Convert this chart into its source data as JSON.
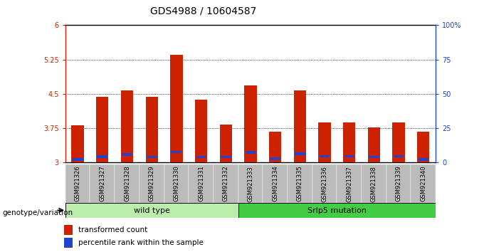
{
  "title": "GDS4988 / 10604587",
  "samples": [
    "GSM921326",
    "GSM921327",
    "GSM921328",
    "GSM921329",
    "GSM921330",
    "GSM921331",
    "GSM921332",
    "GSM921333",
    "GSM921334",
    "GSM921335",
    "GSM921336",
    "GSM921337",
    "GSM921338",
    "GSM921339",
    "GSM921340"
  ],
  "transformed_counts": [
    3.82,
    4.43,
    4.58,
    4.43,
    5.36,
    4.38,
    3.83,
    4.68,
    3.68,
    4.58,
    3.88,
    3.88,
    3.76,
    3.88,
    3.68
  ],
  "percentile_ranks": [
    3.07,
    3.13,
    3.18,
    3.12,
    3.23,
    3.12,
    3.12,
    3.22,
    3.08,
    3.19,
    3.14,
    3.14,
    3.12,
    3.14,
    3.07
  ],
  "bar_base": 3.0,
  "ylim": [
    3.0,
    6.0
  ],
  "yticks_left": [
    3.0,
    3.75,
    4.5,
    5.25,
    6.0
  ],
  "ytick_labels_left": [
    "3",
    "3.75",
    "4.5",
    "5.25",
    "6"
  ],
  "yticks_right": [
    0,
    25,
    50,
    75,
    100
  ],
  "ytick_labels_right": [
    "0",
    "25",
    "50",
    "75",
    "100%"
  ],
  "red_color": "#cc2200",
  "blue_color": "#2244cc",
  "wild_type_samples": 7,
  "wild_type_label": "wild type",
  "mutation_label": "Srlp5 mutation",
  "wild_type_bg": "#bbeeaa",
  "mutation_bg": "#44cc44",
  "group_bar_bg": "#bbbbbb",
  "legend_red_label": "transformed count",
  "legend_blue_label": "percentile rank within the sample",
  "genotype_label": "genotype/variation",
  "title_fontsize": 10,
  "tick_label_fontsize": 7,
  "sample_label_fontsize": 6,
  "left_axis_color": "#cc2200",
  "right_axis_color": "#2244cc"
}
